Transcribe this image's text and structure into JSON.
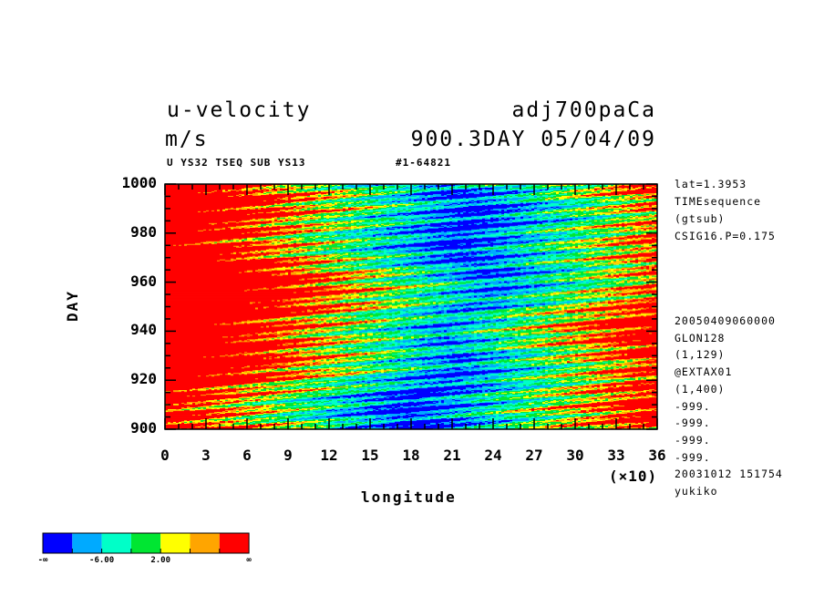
{
  "header": {
    "variable": "u-velocity",
    "units": "m/s",
    "run": "adj700paCa",
    "time": "900.3DAY 05/04/09",
    "sub_left": "U YS32 TSEQ SUB YS13",
    "sub_right": "#1-64821"
  },
  "side_info": {
    "top": [
      "lat=1.3953",
      "TIMEsequence",
      "(gtsub)",
      "CSIG16.P=0.175"
    ],
    "bottom": [
      "20050409060000",
      "GLON128",
      "(1,129)",
      "@EXTAX01",
      "(1,400)",
      "-999.",
      "-999.",
      "-999.",
      "-999.",
      "20031012 151754",
      "yukiko"
    ]
  },
  "colorbar": {
    "colors": [
      "#0000ff",
      "#00aaff",
      "#00ffc8",
      "#00e632",
      "#ffff00",
      "#ffa500",
      "#ff0000"
    ],
    "labels": [
      "-∞",
      "-6.00",
      "2.00",
      "∞"
    ]
  },
  "chart_data": {
    "type": "heatmap",
    "xlabel": "longitude",
    "ylabel": "DAY",
    "xlim": [
      0,
      36
    ],
    "ylim": [
      900,
      1000
    ],
    "x_ticks": [
      0,
      3,
      6,
      9,
      12,
      15,
      18,
      21,
      24,
      27,
      30,
      33,
      36
    ],
    "y_ticks": [
      900,
      920,
      940,
      960,
      980,
      1000
    ],
    "x_tick_labels": [
      "0",
      "3",
      "6",
      "9",
      "12",
      "15",
      "18",
      "21",
      "24",
      "27",
      "30",
      "33",
      "36"
    ],
    "y_tick_labels": [
      "900",
      "920",
      "940",
      "960",
      "980",
      "1000"
    ],
    "x_multiplier": "(×10)",
    "levels": [
      "-∞",
      "-6.00",
      "2.00",
      "∞"
    ],
    "pattern": "negative (blue) band centered near longitude 15-25 (×10), positive (red) regions near 0-9 and 30-36 (×10), noisy eastward-propagating streaks",
    "colors": [
      "#0000ff",
      "#00aaff",
      "#00ffc8",
      "#00e632",
      "#ffff00",
      "#ffa500",
      "#ff0000"
    ]
  }
}
